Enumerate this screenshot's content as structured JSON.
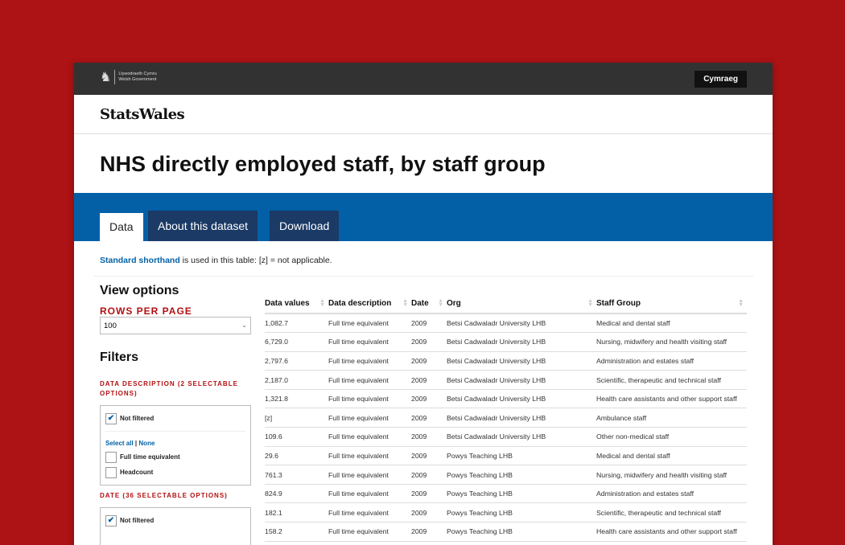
{
  "header": {
    "gov_line1": "Llywodraeth Cymru",
    "gov_line2": "Welsh Government",
    "language_button": "Cymraeg"
  },
  "brand": "StatsWales",
  "page_title": "NHS directly employed staff, by staff group",
  "tabs": [
    {
      "label": "Data",
      "active": true
    },
    {
      "label": "About this dataset"
    },
    {
      "label": "Download"
    }
  ],
  "shorthand": {
    "link": "Standard shorthand",
    "text": " is used in this table: [z] = not applicable."
  },
  "view_options": {
    "heading": "View options",
    "rows_label": "ROWS PER PAGE",
    "rows_value": "100"
  },
  "filters": {
    "heading": "Filters",
    "groups": [
      {
        "label": "DATA DESCRIPTION (2 SELECTABLE OPTIONS)",
        "not_filtered": "Not filtered",
        "select_all": "Select all",
        "none": "None",
        "options": [
          "Full time equivalent",
          "Headcount"
        ]
      },
      {
        "label": "DATE (36 SELECTABLE OPTIONS)",
        "not_filtered": "Not filtered"
      }
    ]
  },
  "table": {
    "columns": [
      "Data values",
      "Data description",
      "Date",
      "Org",
      "Staff Group"
    ],
    "rows": [
      [
        "1,082.7",
        "Full time equivalent",
        "2009",
        "Betsi Cadwaladr University LHB",
        "Medical and dental staff"
      ],
      [
        "6,729.0",
        "Full time equivalent",
        "2009",
        "Betsi Cadwaladr University LHB",
        "Nursing, midwifery and health visiting staff"
      ],
      [
        "2,797.6",
        "Full time equivalent",
        "2009",
        "Betsi Cadwaladr University LHB",
        "Administration and estates staff"
      ],
      [
        "2,187.0",
        "Full time equivalent",
        "2009",
        "Betsi Cadwaladr University LHB",
        "Scientific, therapeutic and technical staff"
      ],
      [
        "1,321.8",
        "Full time equivalent",
        "2009",
        "Betsi Cadwaladr University LHB",
        "Health care assistants and other support staff"
      ],
      [
        "[z]",
        "Full time equivalent",
        "2009",
        "Betsi Cadwaladr University LHB",
        "Ambulance staff"
      ],
      [
        "109.6",
        "Full time equivalent",
        "2009",
        "Betsi Cadwaladr University LHB",
        "Other non-medical staff"
      ],
      [
        "29.6",
        "Full time equivalent",
        "2009",
        "Powys Teaching LHB",
        "Medical and dental staff"
      ],
      [
        "761.3",
        "Full time equivalent",
        "2009",
        "Powys Teaching LHB",
        "Nursing, midwifery and health visiting staff"
      ],
      [
        "824.9",
        "Full time equivalent",
        "2009",
        "Powys Teaching LHB",
        "Administration and estates staff"
      ],
      [
        "182.1",
        "Full time equivalent",
        "2009",
        "Powys Teaching LHB",
        "Scientific, therapeutic and technical staff"
      ],
      [
        "158.2",
        "Full time equivalent",
        "2009",
        "Powys Teaching LHB",
        "Health care assistants and other support staff"
      ]
    ]
  },
  "colors": {
    "background": "#ad1214",
    "topbar": "#323232",
    "band": "#0360a6",
    "tab": "#1b3a66",
    "label_red": "#b30f12"
  }
}
